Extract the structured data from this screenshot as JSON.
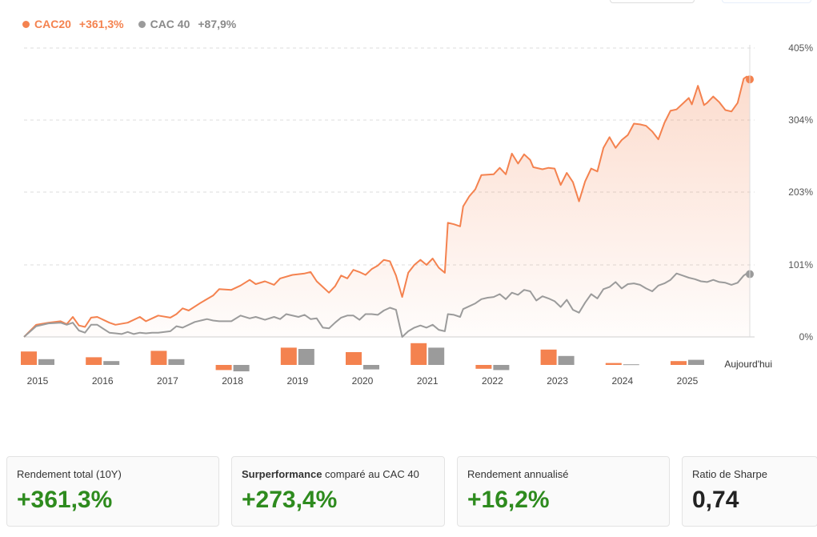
{
  "colors": {
    "cac20": "#f4824f",
    "cac40": "#9b9b9b",
    "positive": "#2e8b1e"
  },
  "legend": [
    {
      "name": "CAC20",
      "value": "+361,3%"
    },
    {
      "name": "CAC 40",
      "value": "+87,9%"
    }
  ],
  "chart_data": {
    "type": "line",
    "title": "",
    "ylim": [
      0,
      405
    ],
    "y_ticks": [
      "405%",
      "304%",
      "203%",
      "101%",
      "0%"
    ],
    "y_tick_values": [
      405,
      304,
      203,
      101,
      0
    ],
    "x_start": 2014.8,
    "x_end": 2026.0,
    "series": [
      {
        "name": "CAC20",
        "points": [
          [
            2014.8,
            0
          ],
          [
            2015.0,
            17
          ],
          [
            2015.2,
            20
          ],
          [
            2015.4,
            22
          ],
          [
            2015.5,
            18
          ],
          [
            2015.6,
            28
          ],
          [
            2015.7,
            16
          ],
          [
            2015.8,
            14
          ],
          [
            2015.9,
            27
          ],
          [
            2016.0,
            28
          ],
          [
            2016.2,
            20
          ],
          [
            2016.3,
            17
          ],
          [
            2016.5,
            20
          ],
          [
            2016.7,
            28
          ],
          [
            2016.8,
            22
          ],
          [
            2016.9,
            26
          ],
          [
            2017.0,
            30
          ],
          [
            2017.2,
            27
          ],
          [
            2017.3,
            32
          ],
          [
            2017.4,
            40
          ],
          [
            2017.5,
            37
          ],
          [
            2017.7,
            48
          ],
          [
            2017.9,
            58
          ],
          [
            2018.0,
            67
          ],
          [
            2018.2,
            66
          ],
          [
            2018.35,
            72
          ],
          [
            2018.5,
            80
          ],
          [
            2018.6,
            74
          ],
          [
            2018.75,
            78
          ],
          [
            2018.9,
            73
          ],
          [
            2019.0,
            82
          ],
          [
            2019.2,
            87
          ],
          [
            2019.4,
            89
          ],
          [
            2019.5,
            91
          ],
          [
            2019.6,
            78
          ],
          [
            2019.7,
            70
          ],
          [
            2019.8,
            62
          ],
          [
            2019.9,
            71
          ],
          [
            2020.0,
            86
          ],
          [
            2020.1,
            82
          ],
          [
            2020.2,
            94
          ],
          [
            2020.3,
            91
          ],
          [
            2020.4,
            87
          ],
          [
            2020.5,
            95
          ],
          [
            2020.6,
            100
          ],
          [
            2020.7,
            108
          ],
          [
            2020.8,
            106
          ],
          [
            2020.9,
            86
          ],
          [
            2021.0,
            56
          ],
          [
            2021.1,
            90
          ],
          [
            2021.2,
            101
          ],
          [
            2021.3,
            108
          ],
          [
            2021.4,
            101
          ],
          [
            2021.5,
            110
          ],
          [
            2021.6,
            97
          ],
          [
            2021.7,
            90
          ],
          [
            2021.75,
            160
          ],
          [
            2021.85,
            158
          ],
          [
            2021.95,
            155
          ],
          [
            2022.0,
            183
          ],
          [
            2022.1,
            197
          ],
          [
            2022.2,
            207
          ],
          [
            2022.3,
            227
          ],
          [
            2022.5,
            228
          ],
          [
            2022.6,
            237
          ],
          [
            2022.7,
            228
          ],
          [
            2022.8,
            257
          ],
          [
            2022.9,
            243
          ],
          [
            2023.0,
            256
          ],
          [
            2023.1,
            248
          ],
          [
            2023.15,
            238
          ],
          [
            2023.3,
            235
          ],
          [
            2023.4,
            237
          ],
          [
            2023.5,
            236
          ],
          [
            2023.6,
            213
          ],
          [
            2023.7,
            230
          ],
          [
            2023.8,
            217
          ],
          [
            2023.9,
            190
          ],
          [
            2024.0,
            218
          ],
          [
            2024.1,
            236
          ],
          [
            2024.2,
            232
          ],
          [
            2024.3,
            265
          ],
          [
            2024.4,
            280
          ],
          [
            2024.5,
            265
          ],
          [
            2024.6,
            276
          ],
          [
            2024.7,
            283
          ],
          [
            2024.8,
            299
          ],
          [
            2024.9,
            298
          ],
          [
            2025.0,
            296
          ],
          [
            2025.1,
            288
          ],
          [
            2025.2,
            277
          ],
          [
            2025.3,
            300
          ],
          [
            2025.4,
            317
          ],
          [
            2025.5,
            319
          ],
          [
            2025.6,
            327
          ],
          [
            2025.7,
            335
          ],
          [
            2025.75,
            326
          ],
          [
            2025.85,
            352
          ],
          [
            2025.95,
            325
          ],
          [
            2026.0,
            328
          ],
          [
            2026.1,
            337
          ],
          [
            2026.2,
            329
          ],
          [
            2026.3,
            318
          ],
          [
            2026.4,
            316
          ],
          [
            2026.5,
            328
          ],
          [
            2026.6,
            362
          ],
          [
            2026.65,
            365
          ],
          [
            2026.7,
            361
          ]
        ]
      },
      {
        "name": "CAC 40",
        "points": [
          [
            2014.8,
            0
          ],
          [
            2015.0,
            15
          ],
          [
            2015.2,
            19
          ],
          [
            2015.4,
            20
          ],
          [
            2015.5,
            17
          ],
          [
            2015.6,
            20
          ],
          [
            2015.7,
            9
          ],
          [
            2015.8,
            6
          ],
          [
            2015.9,
            17
          ],
          [
            2016.0,
            17
          ],
          [
            2016.2,
            6
          ],
          [
            2016.3,
            5
          ],
          [
            2016.4,
            4
          ],
          [
            2016.5,
            7
          ],
          [
            2016.6,
            4
          ],
          [
            2016.7,
            6
          ],
          [
            2016.8,
            5
          ],
          [
            2016.9,
            6
          ],
          [
            2017.0,
            6
          ],
          [
            2017.2,
            8
          ],
          [
            2017.3,
            15
          ],
          [
            2017.4,
            13
          ],
          [
            2017.6,
            21
          ],
          [
            2017.8,
            25
          ],
          [
            2017.9,
            23
          ],
          [
            2018.0,
            22
          ],
          [
            2018.2,
            22
          ],
          [
            2018.35,
            30
          ],
          [
            2018.5,
            26
          ],
          [
            2018.6,
            28
          ],
          [
            2018.75,
            24
          ],
          [
            2018.9,
            28
          ],
          [
            2019.0,
            25
          ],
          [
            2019.1,
            32
          ],
          [
            2019.3,
            28
          ],
          [
            2019.4,
            31
          ],
          [
            2019.5,
            25
          ],
          [
            2019.6,
            26
          ],
          [
            2019.7,
            13
          ],
          [
            2019.8,
            12
          ],
          [
            2019.9,
            20
          ],
          [
            2020.0,
            27
          ],
          [
            2020.1,
            30
          ],
          [
            2020.2,
            30
          ],
          [
            2020.3,
            24
          ],
          [
            2020.4,
            32
          ],
          [
            2020.5,
            32
          ],
          [
            2020.6,
            31
          ],
          [
            2020.7,
            37
          ],
          [
            2020.8,
            41
          ],
          [
            2020.9,
            38
          ],
          [
            2021.0,
            0
          ],
          [
            2021.1,
            8
          ],
          [
            2021.2,
            13
          ],
          [
            2021.3,
            16
          ],
          [
            2021.4,
            13
          ],
          [
            2021.5,
            17
          ],
          [
            2021.6,
            10
          ],
          [
            2021.7,
            8
          ],
          [
            2021.75,
            32
          ],
          [
            2021.85,
            31
          ],
          [
            2021.95,
            28
          ],
          [
            2022.0,
            39
          ],
          [
            2022.2,
            47
          ],
          [
            2022.3,
            53
          ],
          [
            2022.4,
            55
          ],
          [
            2022.5,
            56
          ],
          [
            2022.6,
            60
          ],
          [
            2022.7,
            53
          ],
          [
            2022.8,
            62
          ],
          [
            2022.9,
            59
          ],
          [
            2023.0,
            66
          ],
          [
            2023.1,
            64
          ],
          [
            2023.2,
            51
          ],
          [
            2023.3,
            57
          ],
          [
            2023.4,
            54
          ],
          [
            2023.5,
            50
          ],
          [
            2023.6,
            42
          ],
          [
            2023.7,
            52
          ],
          [
            2023.8,
            38
          ],
          [
            2023.9,
            34
          ],
          [
            2024.0,
            48
          ],
          [
            2024.1,
            60
          ],
          [
            2024.2,
            54
          ],
          [
            2024.3,
            67
          ],
          [
            2024.4,
            70
          ],
          [
            2024.5,
            77
          ],
          [
            2024.6,
            68
          ],
          [
            2024.7,
            74
          ],
          [
            2024.8,
            75
          ],
          [
            2024.9,
            73
          ],
          [
            2025.0,
            68
          ],
          [
            2025.1,
            64
          ],
          [
            2025.2,
            72
          ],
          [
            2025.3,
            75
          ],
          [
            2025.4,
            80
          ],
          [
            2025.5,
            89
          ],
          [
            2025.6,
            86
          ],
          [
            2025.7,
            83
          ],
          [
            2025.8,
            81
          ],
          [
            2025.9,
            78
          ],
          [
            2026.0,
            77
          ],
          [
            2026.1,
            80
          ],
          [
            2026.2,
            77
          ],
          [
            2026.3,
            76
          ],
          [
            2026.4,
            73
          ],
          [
            2026.5,
            76
          ],
          [
            2026.6,
            86
          ],
          [
            2026.65,
            89
          ],
          [
            2026.7,
            88
          ]
        ]
      }
    ],
    "annual": {
      "years": [
        "2015",
        "2016",
        "2017",
        "2018",
        "2019",
        "2020",
        "2021",
        "2022",
        "2023",
        "2024",
        "2025"
      ],
      "today_label": "Aujourd'hui",
      "cac20": [
        10.5,
        6,
        11,
        -4,
        13.5,
        10,
        17,
        -3,
        12,
        1.5,
        3
      ],
      "cac40": [
        4.5,
        3,
        4.5,
        -5,
        12.5,
        -3.5,
        13.5,
        -4,
        7,
        0.5,
        4
      ]
    }
  },
  "cards": [
    {
      "label_bold": "",
      "label": "Rendement total (10Y)",
      "value": "+361,3%"
    },
    {
      "label_bold": "Surperformance",
      "label": " comparé au CAC 40",
      "value": "+273,4%"
    },
    {
      "label_bold": "",
      "label": "Rendement annualisé",
      "value": "+16,2%"
    },
    {
      "label_bold": "",
      "label": "Ratio de Sharpe",
      "value": "0,74"
    }
  ]
}
